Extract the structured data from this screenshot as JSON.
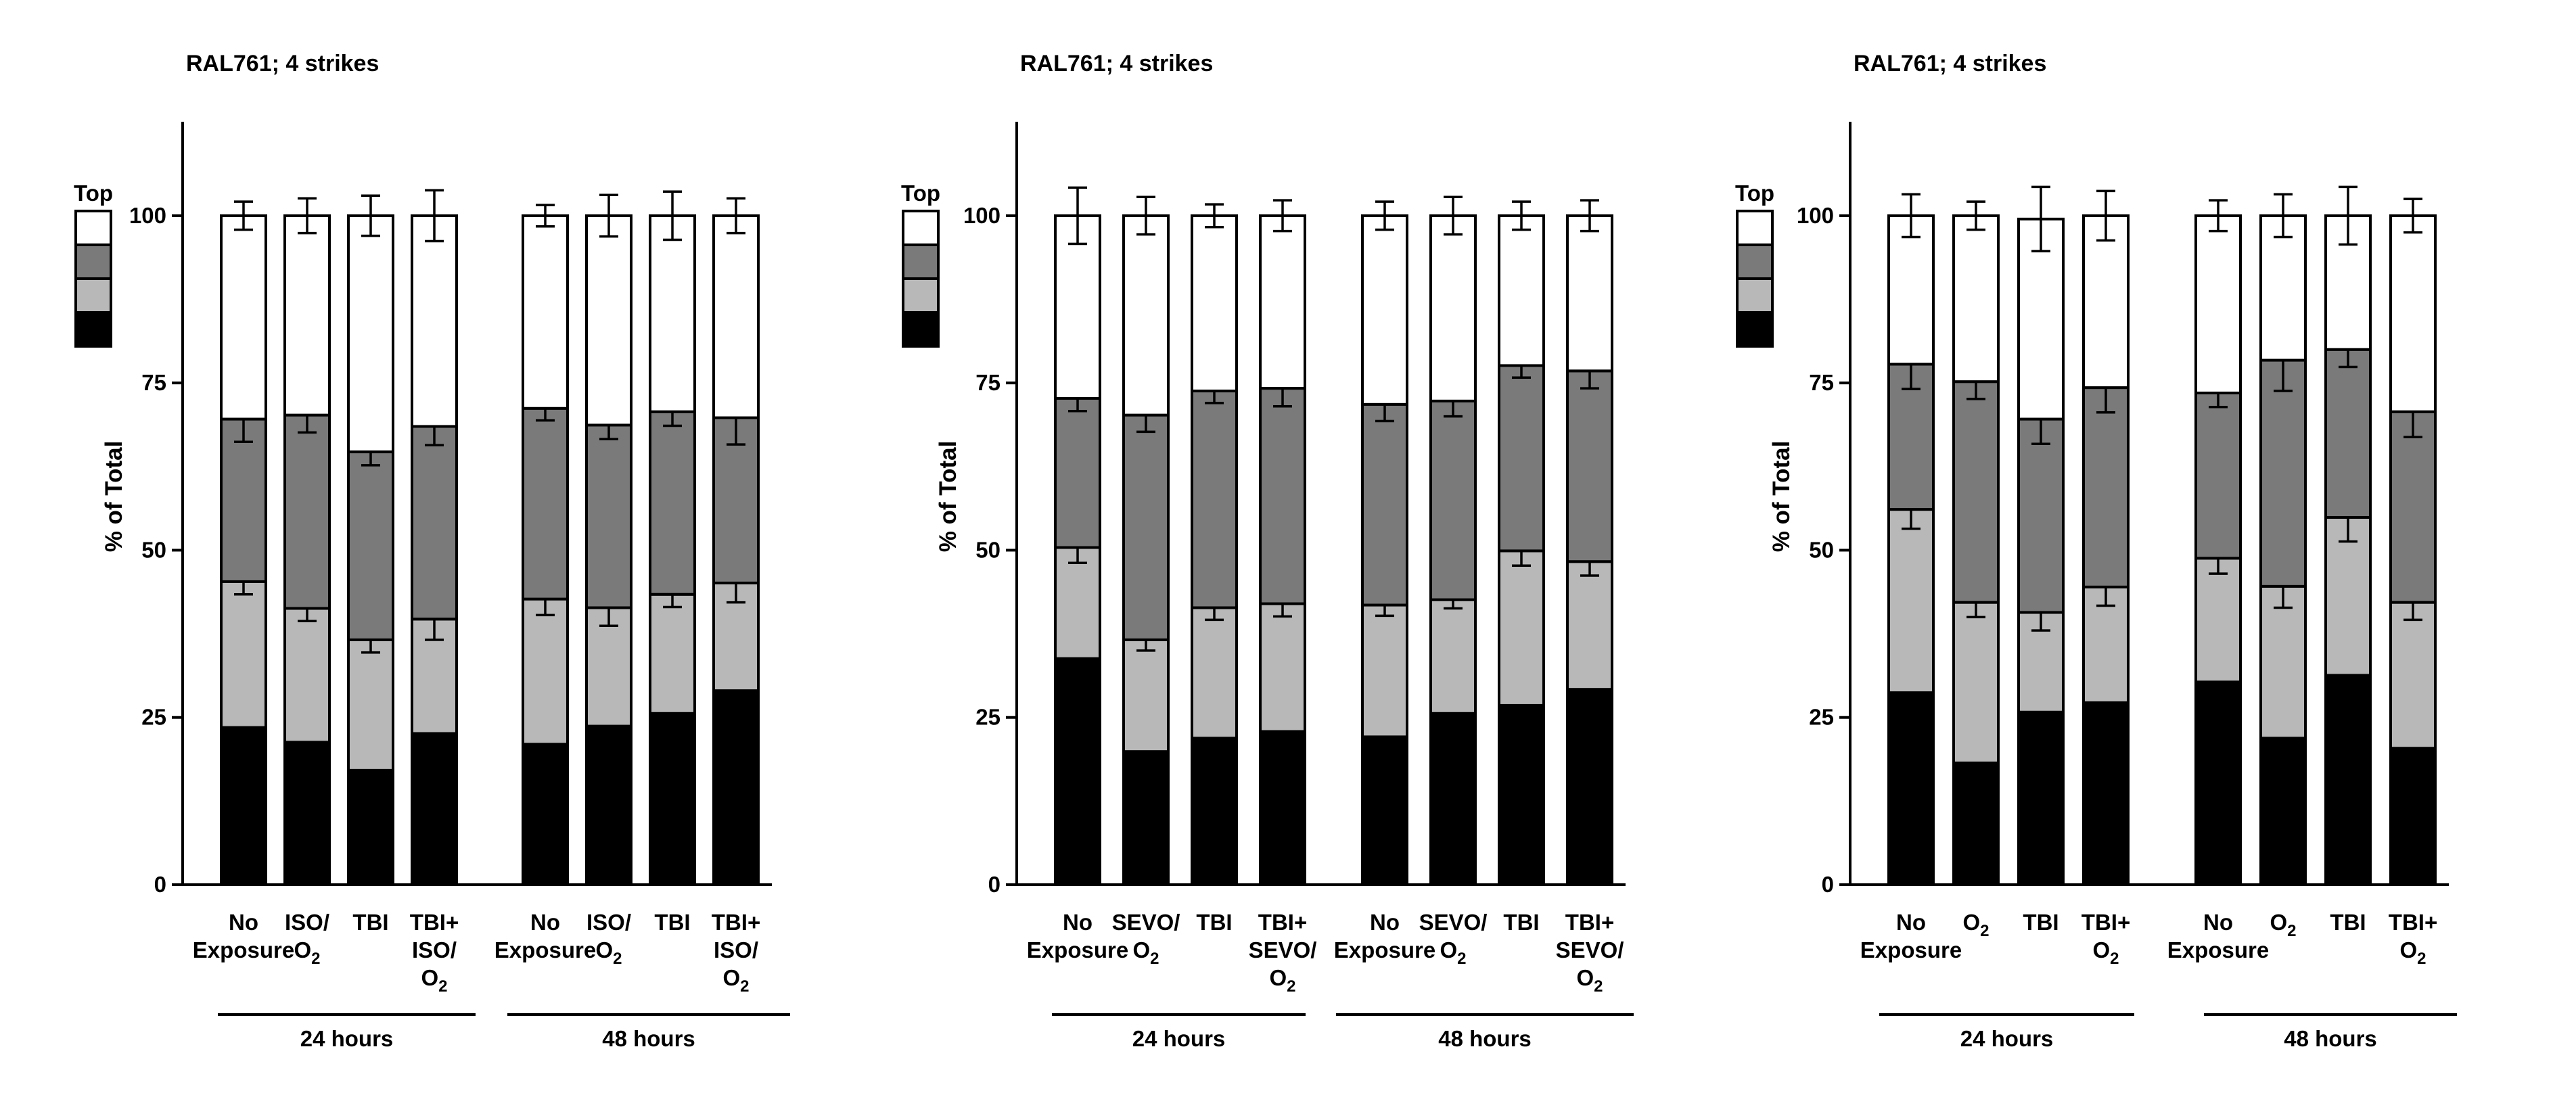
{
  "palette": {
    "black": "#000000",
    "dark_gray": "#7a7a7a",
    "light_gray": "#b8b8b8",
    "white": "#ffffff"
  },
  "legend": {
    "label": "Top"
  },
  "chart_data": [
    {
      "type": "bar",
      "stacked": true,
      "title": "RAL761; 4 strikes",
      "ylabel": "% of Total",
      "ylim": [
        0,
        110
      ],
      "yticks": [
        0,
        25,
        50,
        75,
        100
      ],
      "categories": [
        [
          "No",
          "Exposure"
        ],
        [
          "ISO/",
          "O2"
        ],
        [
          "TBI"
        ],
        [
          "TBI+",
          "ISO/",
          "O2"
        ],
        [
          "No",
          "Exposure"
        ],
        [
          "ISO/",
          "O2"
        ],
        [
          "TBI"
        ],
        [
          "TBI+",
          "ISO/",
          "O2"
        ]
      ],
      "groups": [
        {
          "label": "24 hours",
          "indices": [
            0,
            1,
            2,
            3
          ]
        },
        {
          "label": "48 hours",
          "indices": [
            4,
            5,
            6,
            7
          ]
        }
      ],
      "series": [
        {
          "color": "#000000",
          "values": [
            23.5,
            21.3,
            17.1,
            22.6,
            21.0,
            23.7,
            25.6,
            29.0
          ],
          "err": [
            3.8,
            3.4,
            2.0,
            1.7,
            2.0,
            2.6,
            2.7,
            3.8
          ]
        },
        {
          "color": "#b8b8b8",
          "values": [
            21.8,
            20.0,
            19.5,
            17.1,
            21.7,
            17.7,
            17.8,
            16.1
          ],
          "err": [
            1.9,
            1.9,
            1.9,
            3.1,
            2.4,
            2.7,
            1.9,
            2.9
          ]
        },
        {
          "color": "#7a7a7a",
          "values": [
            24.3,
            28.9,
            28.1,
            28.8,
            28.5,
            27.3,
            27.3,
            24.7
          ],
          "err": [
            3.4,
            2.6,
            2.0,
            2.8,
            1.8,
            2.1,
            2.1,
            4.0
          ]
        },
        {
          "color": "#ffffff",
          "values": [
            30.4,
            29.8,
            35.3,
            31.5,
            28.8,
            31.3,
            29.3,
            30.2
          ],
          "err": [
            2.1,
            2.6,
            3.0,
            3.8,
            1.6,
            3.1,
            3.6,
            2.6
          ]
        }
      ]
    },
    {
      "type": "bar",
      "stacked": true,
      "title": "RAL761; 4 strikes",
      "ylabel": "% of Total",
      "ylim": [
        0,
        110
      ],
      "yticks": [
        0,
        25,
        50,
        75,
        100
      ],
      "categories": [
        [
          "No",
          "Exposure"
        ],
        [
          "SEVO/",
          "O2"
        ],
        [
          "TBI"
        ],
        [
          "TBI+",
          "SEVO/",
          "O2"
        ],
        [
          "No",
          "Exposure"
        ],
        [
          "SEVO/",
          "O2"
        ],
        [
          "TBI"
        ],
        [
          "TBI+",
          "SEVO/",
          "O2"
        ]
      ],
      "groups": [
        {
          "label": "24 hours",
          "indices": [
            0,
            1,
            2,
            3
          ]
        },
        {
          "label": "48 hours",
          "indices": [
            4,
            5,
            6,
            7
          ]
        }
      ],
      "series": [
        {
          "color": "#000000",
          "values": [
            33.8,
            19.9,
            21.9,
            22.9,
            22.1,
            25.6,
            26.8,
            29.2
          ],
          "err": [
            4.2,
            2.4,
            2.3,
            2.6,
            2.7,
            3.0,
            2.7,
            2.3
          ]
        },
        {
          "color": "#b8b8b8",
          "values": [
            16.6,
            16.7,
            19.5,
            19.1,
            19.7,
            17.0,
            23.1,
            19.1
          ],
          "err": [
            2.3,
            1.6,
            1.8,
            1.9,
            1.6,
            1.3,
            2.2,
            2.1
          ]
        },
        {
          "color": "#7a7a7a",
          "values": [
            22.3,
            33.6,
            32.4,
            32.2,
            30.0,
            29.7,
            27.7,
            28.5
          ],
          "err": [
            1.9,
            2.5,
            1.8,
            2.7,
            2.5,
            2.3,
            1.8,
            2.6
          ]
        },
        {
          "color": "#ffffff",
          "values": [
            27.3,
            29.8,
            26.2,
            25.8,
            28.2,
            27.7,
            22.4,
            23.2
          ],
          "err": [
            4.2,
            2.8,
            1.7,
            2.3,
            2.1,
            2.8,
            2.1,
            2.3
          ]
        }
      ]
    },
    {
      "type": "bar",
      "stacked": true,
      "title": "RAL761; 4 strikes",
      "ylabel": "% of Total",
      "ylim": [
        0,
        110
      ],
      "yticks": [
        0,
        25,
        50,
        75,
        100
      ],
      "categories": [
        [
          "No",
          "Exposure"
        ],
        [
          "O2"
        ],
        [
          "TBI"
        ],
        [
          "TBI+",
          "O2"
        ],
        [
          "No",
          "Exposure"
        ],
        [
          "O2"
        ],
        [
          "TBI"
        ],
        [
          "TBI+",
          "O2"
        ]
      ],
      "groups": [
        {
          "label": "24 hours",
          "indices": [
            0,
            1,
            2,
            3
          ]
        },
        {
          "label": "48 hours",
          "indices": [
            4,
            5,
            6,
            7
          ]
        }
      ],
      "series": [
        {
          "color": "#000000",
          "values": [
            28.7,
            18.2,
            25.8,
            27.2,
            30.3,
            21.9,
            31.3,
            20.4
          ],
          "err": [
            4.2,
            2.3,
            4.2,
            3.2,
            2.5,
            2.3,
            2.0,
            3.0
          ]
        },
        {
          "color": "#b8b8b8",
          "values": [
            27.4,
            24.0,
            14.9,
            17.3,
            18.5,
            22.7,
            23.6,
            21.8
          ],
          "err": [
            2.9,
            2.2,
            2.7,
            2.8,
            2.3,
            3.2,
            3.6,
            2.6
          ]
        },
        {
          "color": "#7a7a7a",
          "values": [
            21.7,
            33.0,
            28.9,
            29.8,
            24.7,
            33.8,
            25.1,
            28.5
          ],
          "err": [
            3.7,
            2.6,
            3.7,
            3.7,
            2.1,
            4.6,
            2.6,
            3.8
          ]
        },
        {
          "color": "#ffffff",
          "values": [
            22.2,
            24.8,
            29.9,
            25.7,
            26.5,
            21.6,
            20.0,
            29.3
          ],
          "err": [
            3.2,
            2.1,
            4.8,
            3.7,
            2.3,
            3.2,
            4.3,
            2.5
          ]
        }
      ]
    }
  ]
}
